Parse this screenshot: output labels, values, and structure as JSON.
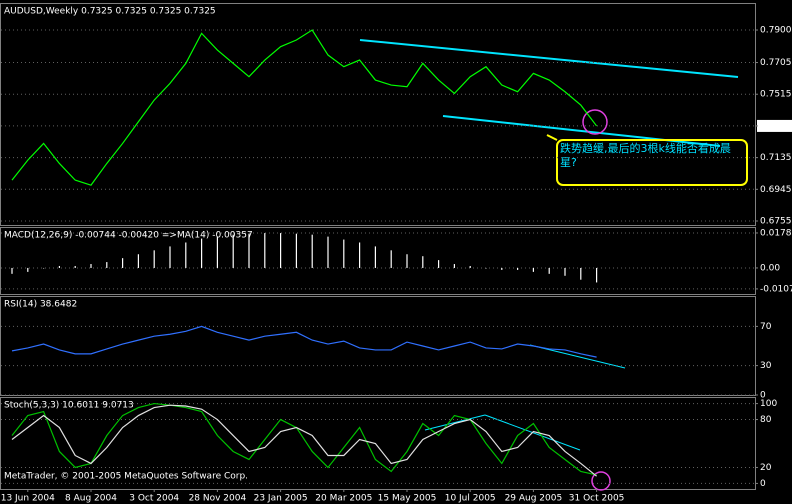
{
  "chart_data": [
    {
      "type": "line",
      "title": "AUDUSD,Weekly  0.7325 0.7325 0.7325 0.7325",
      "color": "#00ff00",
      "categories": [
        null,
        "13 Jun 2004",
        null,
        null,
        null,
        "8 Aug 2004",
        null,
        null,
        null,
        "3 Oct 2004",
        null,
        null,
        null,
        "28 Nov 2004",
        null,
        null,
        null,
        "23 Jan 2005",
        null,
        null,
        null,
        "20 Mar 2005",
        null,
        null,
        null,
        "15 May 2005",
        null,
        null,
        null,
        "10 Jul 2005",
        null,
        null,
        null,
        "29 Aug 2005",
        null,
        null,
        null,
        "31 Oct 2005"
      ],
      "values": [
        0.7,
        0.712,
        0.722,
        0.71,
        0.7,
        0.697,
        0.71,
        0.722,
        0.735,
        0.748,
        0.758,
        0.77,
        0.788,
        0.778,
        0.77,
        0.762,
        0.772,
        0.78,
        0.784,
        0.79,
        0.775,
        0.768,
        0.772,
        0.76,
        0.757,
        0.756,
        0.77,
        0.76,
        0.752,
        0.762,
        0.768,
        0.757,
        0.753,
        0.764,
        0.76,
        0.753,
        0.745,
        0.7325
      ],
      "ylim": [
        0.6731,
        0.8056
      ],
      "yticks": [
        {
          "value": 0.79,
          "label": "0.7900"
        },
        0.7705,
        0.7515,
        0.7325,
        0.7135,
        0.6945,
        0.6755
      ],
      "grid": true,
      "annotation": "跌势趋缓,最后的3根k线能否看成晨星?",
      "footer": "MetaTrader, © 2001-2005 MetaQuotes Software Corp."
    },
    {
      "type": "bar",
      "title": "MACD(12,26,9) -0.00744 -0.00420  =>MA(14) -0.00357",
      "color": "#ffffff",
      "values": [
        -0.003,
        -0.002,
        0.0,
        0.001,
        0.001,
        0.002,
        0.003,
        0.005,
        0.007,
        0.009,
        0.011,
        0.013,
        0.015,
        0.016,
        0.017,
        0.0175,
        0.0178,
        0.0178,
        0.0175,
        0.017,
        0.016,
        0.0145,
        0.013,
        0.011,
        0.009,
        0.007,
        0.006,
        0.004,
        0.002,
        0.001,
        0.0,
        -0.001,
        -0.001,
        -0.002,
        -0.003,
        -0.004,
        -0.006,
        -0.0074
      ],
      "ylim": [
        -0.0133,
        0.0204
      ],
      "yticks": [
        0.01786,
        {
          "value": 0,
          "label": "0.00"
        },
        -0.0107
      ],
      "grid": true
    },
    {
      "type": "line",
      "title": "RSI(14) 38.6482",
      "color": "#3070ff",
      "values": [
        45,
        48,
        52,
        46,
        42,
        42,
        47,
        52,
        56,
        60,
        62,
        65,
        70,
        64,
        60,
        56,
        60,
        62,
        64,
        56,
        52,
        55,
        48,
        46,
        46,
        54,
        50,
        46,
        50,
        54,
        48,
        47,
        52,
        50,
        47,
        46,
        42,
        38.6482
      ],
      "ylim": [
        0,
        100
      ],
      "yticks": [
        70,
        30,
        0
      ],
      "grid": true
    },
    {
      "type": "line",
      "title": "Stoch(5,3,3) 10.6011 9.0713",
      "series": [
        {
          "color": "#00c000",
          "values": [
            60,
            85,
            90,
            40,
            20,
            25,
            60,
            85,
            95,
            100,
            98,
            95,
            90,
            60,
            40,
            30,
            55,
            80,
            70,
            40,
            20,
            45,
            70,
            30,
            15,
            40,
            75,
            60,
            85,
            80,
            50,
            25,
            60,
            75,
            45,
            30,
            15,
            10.6011
          ]
        },
        {
          "color": "#e0e0e0",
          "values": [
            55,
            70,
            85,
            70,
            35,
            25,
            45,
            70,
            85,
            95,
            98,
            97,
            93,
            80,
            60,
            40,
            45,
            65,
            70,
            60,
            35,
            35,
            55,
            50,
            25,
            30,
            55,
            65,
            75,
            80,
            65,
            40,
            45,
            65,
            60,
            40,
            25,
            9.0713
          ]
        }
      ],
      "ylim": [
        -7,
        107
      ],
      "yticks": [
        100,
        80,
        20,
        0
      ],
      "grid": true
    }
  ]
}
